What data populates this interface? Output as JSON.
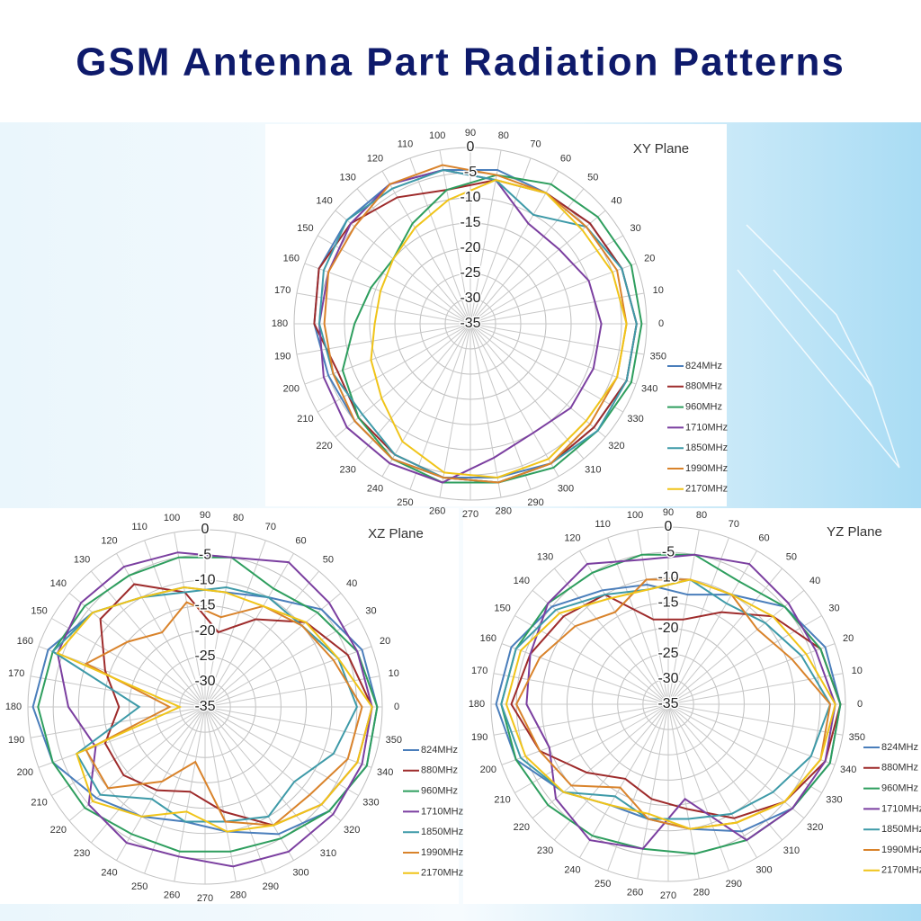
{
  "title": "GSM Antenna Part Radiation Patterns",
  "chart_data": [
    {
      "type": "polar",
      "title": "XY Plane",
      "rlim": [
        -35,
        0
      ],
      "rticks": [
        -35,
        -30,
        -25,
        -20,
        -15,
        -10,
        -5,
        0
      ],
      "thetaticks": [
        0,
        10,
        20,
        30,
        40,
        50,
        60,
        70,
        80,
        90,
        100,
        110,
        120,
        130,
        140,
        150,
        160,
        170,
        180,
        190,
        200,
        210,
        220,
        230,
        240,
        250,
        260,
        270,
        280,
        290,
        300,
        310,
        320,
        330,
        340,
        350
      ],
      "x": [
        0,
        20,
        40,
        60,
        80,
        100,
        120,
        140,
        160,
        180,
        200,
        220,
        240,
        260,
        280,
        300,
        320,
        340
      ],
      "grid": true,
      "legend": "right",
      "series": [
        {
          "name": "824MHz",
          "color": "#4a7ebb",
          "values": [
            -2,
            -3,
            -4,
            -5,
            -4,
            -4,
            -3,
            -3,
            -3,
            -4,
            -5,
            -5,
            -4,
            -4,
            -4,
            -3,
            -3,
            -2
          ]
        },
        {
          "name": "880MHz",
          "color": "#9e2b2b",
          "values": [
            -2,
            -3,
            -4,
            -5,
            -6,
            -8,
            -6,
            -4,
            -3,
            -4,
            -7,
            -6,
            -5,
            -4,
            -3,
            -3,
            -3,
            -2
          ]
        },
        {
          "name": "960MHz",
          "color": "#2e9e5e",
          "values": [
            -1,
            -1,
            -2,
            -3,
            -5,
            -8,
            -12,
            -15,
            -14,
            -12,
            -8,
            -6,
            -4,
            -3,
            -3,
            -2,
            -2,
            -1
          ]
        },
        {
          "name": "1710MHz",
          "color": "#7b3fa0",
          "values": [
            -9,
            -10,
            -12,
            -12,
            -6,
            -4,
            -3,
            -4,
            -5,
            -5,
            -4,
            -3,
            -3,
            -3,
            -8,
            -10,
            -9,
            -9
          ]
        },
        {
          "name": "1850MHz",
          "color": "#3e9aa8",
          "values": [
            -2,
            -3,
            -5,
            -10,
            -6,
            -4,
            -4,
            -3,
            -4,
            -5,
            -6,
            -7,
            -5,
            -4,
            -3,
            -3,
            -2,
            -2
          ]
        },
        {
          "name": "1990MHz",
          "color": "#d9832b",
          "values": [
            -4,
            -4,
            -5,
            -5,
            -5,
            -3,
            -3,
            -5,
            -5,
            -6,
            -6,
            -5,
            -4,
            -4,
            -3,
            -3,
            -4,
            -4
          ]
        },
        {
          "name": "2170MHz",
          "color": "#f0c419",
          "values": [
            -4,
            -5,
            -6,
            -5,
            -6,
            -10,
            -13,
            -15,
            -16,
            -16,
            -14,
            -12,
            -8,
            -5,
            -4,
            -4,
            -5,
            -4
          ]
        }
      ]
    },
    {
      "type": "polar",
      "title": "XZ Plane",
      "rlim": [
        -35,
        0
      ],
      "rticks": [
        -35,
        -30,
        -25,
        -20,
        -15,
        -10,
        -5,
        0
      ],
      "thetaticks": [
        0,
        10,
        20,
        30,
        40,
        50,
        60,
        70,
        80,
        90,
        100,
        110,
        120,
        130,
        140,
        150,
        160,
        170,
        180,
        190,
        200,
        210,
        220,
        230,
        240,
        250,
        260,
        270,
        280,
        290,
        300,
        310,
        320,
        330,
        340,
        350
      ],
      "x": [
        0,
        20,
        40,
        60,
        80,
        100,
        120,
        140,
        160,
        180,
        200,
        220,
        240,
        260,
        280,
        300,
        320,
        340
      ],
      "grid": true,
      "legend": "right",
      "series": [
        {
          "name": "824MHz",
          "color": "#4a7ebb",
          "values": [
            -1,
            -2,
            -5,
            -10,
            -12,
            -11,
            -10,
            -6,
            -2,
            -1,
            -3,
            -7,
            -10,
            -12,
            -10,
            -6,
            -3,
            -1
          ]
        },
        {
          "name": "880MHz",
          "color": "#9e2b2b",
          "values": [
            -2,
            -5,
            -9,
            -15,
            -20,
            -12,
            -7,
            -8,
            -14,
            -18,
            -14,
            -14,
            -16,
            -18,
            -14,
            -8,
            -5,
            -3
          ]
        },
        {
          "name": "960MHz",
          "color": "#2e9e5e",
          "values": [
            -1,
            -3,
            -6,
            -8,
            -5,
            -5,
            -5,
            -4,
            -3,
            -2,
            -3,
            -4,
            -6,
            -6,
            -6,
            -5,
            -3,
            -1
          ]
        },
        {
          "name": "1710MHz",
          "color": "#7b3fa0",
          "values": [
            -2,
            -3,
            -3,
            -2,
            -5,
            -4,
            -3,
            -3,
            -4,
            -8,
            -12,
            -5,
            -4,
            -5,
            -3,
            -2,
            -2,
            -2
          ]
        },
        {
          "name": "1850MHz",
          "color": "#3e9aa8",
          "values": [
            -5,
            -7,
            -10,
            -10,
            -11,
            -12,
            -10,
            -6,
            -3,
            -22,
            -8,
            -8,
            -14,
            -12,
            -12,
            -10,
            -12,
            -8
          ]
        },
        {
          "name": "1990MHz",
          "color": "#d9832b",
          "values": [
            -4,
            -8,
            -10,
            -12,
            -17,
            -14,
            -18,
            -15,
            -10,
            -28,
            -10,
            -10,
            -18,
            -24,
            -12,
            -8,
            -8,
            -5
          ]
        },
        {
          "name": "2170MHz",
          "color": "#f0c419",
          "values": [
            -2,
            -7,
            -9,
            -12,
            -12,
            -11,
            -10,
            -6,
            -4,
            -30,
            -8,
            -6,
            -10,
            -14,
            -10,
            -8,
            -5,
            -3
          ]
        }
      ]
    },
    {
      "type": "polar",
      "title": "YZ Plane",
      "rlim": [
        -35,
        0
      ],
      "rticks": [
        -35,
        -30,
        -25,
        -20,
        -15,
        -10,
        -5,
        0
      ],
      "thetaticks": [
        0,
        10,
        20,
        30,
        40,
        50,
        60,
        70,
        80,
        90,
        100,
        110,
        120,
        130,
        140,
        150,
        160,
        170,
        180,
        190,
        200,
        210,
        220,
        230,
        240,
        250,
        260,
        270,
        280,
        290,
        300,
        310,
        320,
        330,
        340,
        350
      ],
      "x": [
        0,
        20,
        40,
        60,
        80,
        100,
        120,
        140,
        160,
        180,
        200,
        220,
        240,
        260,
        280,
        300,
        320,
        340
      ],
      "grid": true,
      "legend": "right",
      "series": [
        {
          "name": "824MHz",
          "color": "#4a7ebb",
          "values": [
            -1,
            -2,
            -5,
            -10,
            -13,
            -11,
            -9,
            -5,
            -2,
            -1,
            -3,
            -8,
            -12,
            -12,
            -10,
            -6,
            -3,
            -1
          ]
        },
        {
          "name": "880MHz",
          "color": "#9e2b2b",
          "values": [
            -1,
            -3,
            -8,
            -14,
            -18,
            -18,
            -10,
            -8,
            -6,
            -4,
            -8,
            -14,
            -18,
            -16,
            -14,
            -9,
            -5,
            -2
          ]
        },
        {
          "name": "960MHz",
          "color": "#2e9e5e",
          "values": [
            -1,
            -3,
            -5,
            -7,
            -5,
            -5,
            -5,
            -4,
            -3,
            -2,
            -3,
            -4,
            -5,
            -6,
            -5,
            -4,
            -3,
            -1
          ]
        },
        {
          "name": "1710MHz",
          "color": "#7b3fa0",
          "values": [
            -2,
            -4,
            -4,
            -3,
            -5,
            -6,
            -3,
            -4,
            -6,
            -7,
            -10,
            -6,
            -4,
            -6,
            -16,
            -4,
            -3,
            -2
          ]
        },
        {
          "name": "1850MHz",
          "color": "#3e9aa8",
          "values": [
            -3,
            -7,
            -10,
            -12,
            -10,
            -12,
            -10,
            -6,
            -3,
            -2,
            -4,
            -8,
            -14,
            -12,
            -12,
            -10,
            -8,
            -5
          ]
        },
        {
          "name": "1990MHz",
          "color": "#d9832b",
          "values": [
            -3,
            -9,
            -12,
            -10,
            -10,
            -10,
            -14,
            -11,
            -8,
            -5,
            -8,
            -10,
            -16,
            -12,
            -10,
            -8,
            -5,
            -3
          ]
        },
        {
          "name": "2170MHz",
          "color": "#f0c419",
          "values": [
            -2,
            -6,
            -8,
            -10,
            -10,
            -12,
            -11,
            -7,
            -4,
            -3,
            -5,
            -8,
            -12,
            -13,
            -10,
            -8,
            -5,
            -3
          ]
        }
      ]
    }
  ]
}
